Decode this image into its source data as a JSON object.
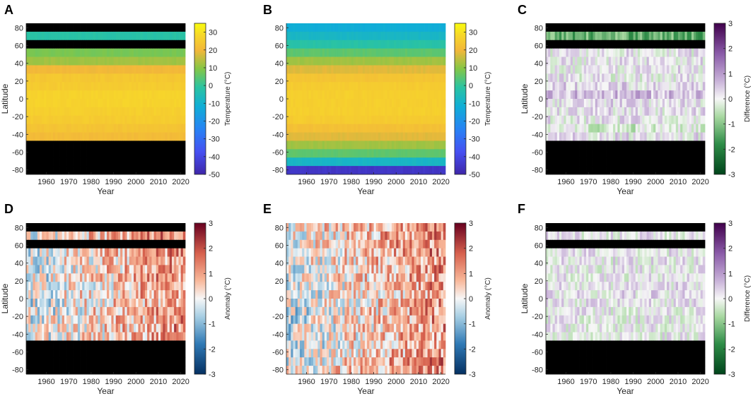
{
  "figure": {
    "description_note": "Six heatmap panels of zonal-mean temperature / anomaly / difference by latitude and year"
  },
  "chart_data": [
    {
      "panel": "A",
      "type": "heatmap",
      "xlabel": "Year",
      "ylabel": "Latitude",
      "x_range": [
        1951,
        2022
      ],
      "y_range": [
        -85,
        85
      ],
      "xticks": [
        "1960",
        "1970",
        "1980",
        "1990",
        "2000",
        "2010",
        "2020"
      ],
      "yticks": [
        "80",
        "60",
        "40",
        "20",
        "0",
        "-20",
        "-40",
        "-60",
        "-80"
      ],
      "colormap": "parula",
      "colorbar": {
        "label": "Temperature (°C)",
        "min": -50,
        "max": 35,
        "ticks": [
          "30",
          "20",
          "10",
          "0",
          "-10",
          "-20",
          "-30",
          "-40",
          "-50"
        ]
      },
      "band_values": [
        null,
        -2,
        null,
        8,
        12,
        20,
        24,
        25,
        27,
        27,
        26,
        25,
        23,
        21,
        null,
        null,
        null,
        null
      ],
      "missing_color": "#000000"
    },
    {
      "panel": "B",
      "type": "heatmap",
      "xlabel": "Year",
      "ylabel": "",
      "x_range": [
        1951,
        2022
      ],
      "y_range": [
        -85,
        85
      ],
      "xticks": [
        "1960",
        "1970",
        "1980",
        "1990",
        "2000",
        "2010",
        "2020"
      ],
      "yticks": [
        "80",
        "60",
        "40",
        "20",
        "0",
        "-20",
        "-40",
        "-60",
        "-80"
      ],
      "colormap": "parula",
      "colorbar": {
        "label": "Temperature (°C)",
        "min": -50,
        "max": 35,
        "ticks": [
          "30",
          "20",
          "10",
          "0",
          "-10",
          "-20",
          "-30",
          "-40",
          "-50"
        ]
      },
      "band_values": [
        -12,
        -8,
        -2,
        5,
        12,
        18,
        23,
        25,
        26,
        26,
        26,
        25,
        22,
        18,
        12,
        5,
        -8,
        -45
      ],
      "missing_color": "#000000"
    },
    {
      "panel": "C",
      "type": "heatmap",
      "xlabel": "Year",
      "ylabel": "Latitude",
      "x_range": [
        1951,
        2022
      ],
      "y_range": [
        -85,
        85
      ],
      "xticks": [
        "1960",
        "1970",
        "1980",
        "1990",
        "2000",
        "2010",
        "2020"
      ],
      "yticks": [
        "80",
        "60",
        "40",
        "20",
        "0",
        "-20",
        "-40",
        "-60",
        "-80"
      ],
      "colormap": "PRGn",
      "colorbar": {
        "label": "Difference (°C)",
        "min": -3,
        "max": 3,
        "ticks": [
          "3",
          "2",
          "1",
          "0",
          "-1",
          "-2",
          "-3"
        ]
      },
      "band_values": [
        null,
        -2.6,
        null,
        0.2,
        0.3,
        0.2,
        0.1,
        0.6,
        1.2,
        0.5,
        0.3,
        0.2,
        -0.5,
        0.3,
        null,
        null,
        null,
        null
      ],
      "missing_color": "#000000"
    },
    {
      "panel": "D",
      "type": "heatmap",
      "xlabel": "Year",
      "ylabel": "Latitude",
      "x_range": [
        1951,
        2022
      ],
      "y_range": [
        -85,
        85
      ],
      "xticks": [
        "1960",
        "1970",
        "1980",
        "1990",
        "2000",
        "2010",
        "2020"
      ],
      "yticks": [
        "80",
        "60",
        "40",
        "20",
        "0",
        "-20",
        "-40",
        "-60",
        "-80"
      ],
      "colormap": "RdBu_r",
      "colorbar": {
        "label": "Anomaly (°C)",
        "min": -3,
        "max": 3,
        "ticks": [
          "3",
          "2",
          "1",
          "0",
          "-1",
          "-2",
          "-3"
        ]
      },
      "band_values": [
        null,
        0.8,
        null,
        0.7,
        0.5,
        0.4,
        0.3,
        0.3,
        0.3,
        0.2,
        0.3,
        0.3,
        0.3,
        0.3,
        null,
        null,
        null,
        null
      ],
      "missing_color": "#000000"
    },
    {
      "panel": "E",
      "type": "heatmap",
      "xlabel": "Year",
      "ylabel": "",
      "x_range": [
        1951,
        2022
      ],
      "y_range": [
        -85,
        85
      ],
      "xticks": [
        "1960",
        "1970",
        "1980",
        "1990",
        "2000",
        "2010",
        "2020"
      ],
      "yticks": [
        "80",
        "60",
        "40",
        "20",
        "0",
        "-20",
        "-40",
        "-60",
        "-80"
      ],
      "colormap": "RdBu_r",
      "colorbar": {
        "label": "Anomaly (°C)",
        "min": -3,
        "max": 3,
        "ticks": [
          "3",
          "2",
          "1",
          "0",
          "-1",
          "-2",
          "-3"
        ]
      },
      "band_values": [
        0.9,
        0.8,
        0.7,
        0.6,
        0.5,
        0.4,
        0.3,
        0.2,
        0.2,
        0.2,
        0.2,
        0.2,
        0.2,
        0.2,
        0.2,
        0.3,
        0.6,
        0.8
      ],
      "missing_color": "#000000"
    },
    {
      "panel": "F",
      "type": "heatmap",
      "xlabel": "Year",
      "ylabel": "Latitude",
      "x_range": [
        1951,
        2022
      ],
      "y_range": [
        -85,
        85
      ],
      "xticks": [
        "1960",
        "1970",
        "1980",
        "1990",
        "2000",
        "2010",
        "2020"
      ],
      "yticks": [
        "80",
        "60",
        "40",
        "20",
        "0",
        "-20",
        "-40",
        "-60",
        "-80"
      ],
      "colormap": "PRGn",
      "colorbar": {
        "label": "Difference (°C)",
        "min": -3,
        "max": 3,
        "ticks": [
          "3",
          "2",
          "1",
          "0",
          "-1",
          "-2",
          "-3"
        ]
      },
      "band_values": [
        null,
        0.2,
        null,
        0.2,
        0.2,
        0.1,
        0.1,
        0.3,
        0.4,
        0.2,
        0.1,
        0.1,
        0.1,
        0.1,
        null,
        null,
        null,
        null
      ],
      "missing_color": "#000000"
    }
  ]
}
